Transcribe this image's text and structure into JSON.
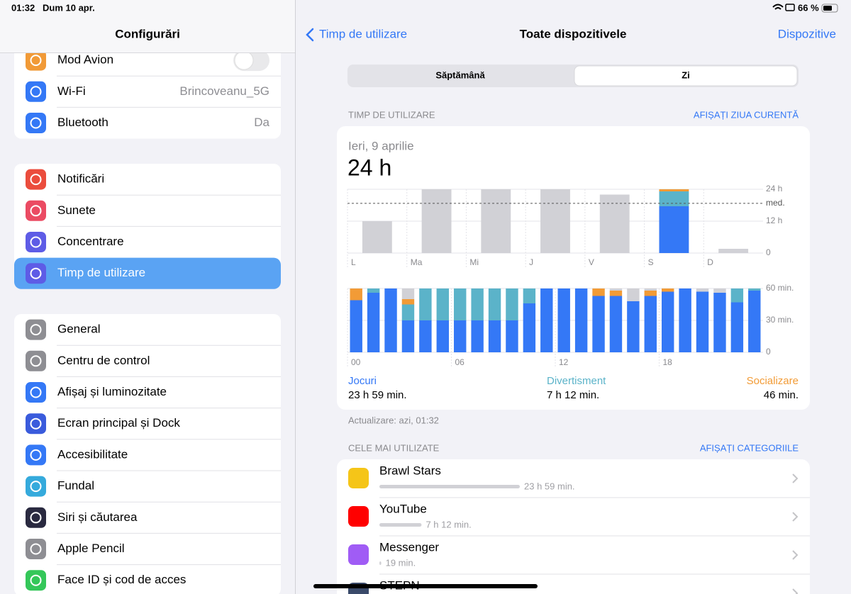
{
  "status": {
    "time": "01:32",
    "date": "Dum 10 apr.",
    "battery": "66 %"
  },
  "sidebar": {
    "title": "Configurări",
    "groups": [
      [
        {
          "label": "Mod Avion",
          "color": "#f19a37",
          "toggle": false
        },
        {
          "label": "Wi-Fi",
          "value": "Brincoveanu_5G",
          "color": "#3478f6"
        },
        {
          "label": "Bluetooth",
          "value": "Da",
          "color": "#3478f6"
        }
      ],
      [
        {
          "label": "Notificări",
          "color": "#eb4d3d"
        },
        {
          "label": "Sunete",
          "color": "#eb4b63"
        },
        {
          "label": "Concentrare",
          "color": "#5e5ce6"
        },
        {
          "label": "Timp de utilizare",
          "color": "#5e5ce6",
          "selected": true
        }
      ],
      [
        {
          "label": "General",
          "color": "#8e8e93"
        },
        {
          "label": "Centru de control",
          "color": "#8e8e93"
        },
        {
          "label": "Afișaj și luminozitate",
          "color": "#3478f6"
        },
        {
          "label": "Ecran principal și Dock",
          "color": "#3a5bdc"
        },
        {
          "label": "Accesibilitate",
          "color": "#3478f6"
        },
        {
          "label": "Fundal",
          "color": "#35aadc"
        },
        {
          "label": "Siri și căutarea",
          "color": "#2a2a40"
        },
        {
          "label": "Apple Pencil",
          "color": "#8e8e93"
        },
        {
          "label": "Face ID și cod de acces",
          "color": "#34c759"
        }
      ]
    ]
  },
  "nav": {
    "back": "Timp de utilizare",
    "title": "Toate dispozitivele",
    "action": "Dispozitive"
  },
  "segments": {
    "items": [
      "Săptămână",
      "Zi"
    ],
    "selected": 1
  },
  "usage": {
    "header": "TIMP DE UTILIZARE",
    "link": "AFIȘAȚI ZIUA CURENTĂ",
    "date": "Ieri, 9 aprilie",
    "total": "24 h",
    "daily_chart": {
      "type": "bar",
      "categories": [
        "L",
        "Ma",
        "Mi",
        "J",
        "V",
        "S",
        "D"
      ],
      "values": [
        12,
        24,
        24,
        24,
        22,
        null,
        1.6
      ],
      "color": "#d1d1d6",
      "series": [
        {
          "color": "#3478f6",
          "values": [
            null,
            null,
            null,
            null,
            null,
            17.6,
            null
          ]
        },
        {
          "color": "#5bb3c9",
          "values": [
            null,
            null,
            null,
            null,
            null,
            5.6,
            null
          ]
        },
        {
          "color": "#f29b36",
          "values": [
            null,
            null,
            null,
            null,
            null,
            0.8,
            null
          ]
        }
      ],
      "ylim": [
        0,
        24
      ],
      "yticks": [
        0,
        {
          "value": 12,
          "label": "12 h"
        },
        {
          "value": 24,
          "label": "24 h"
        }
      ],
      "average": 18.7,
      "average_label": "med."
    },
    "hourly_chart": {
      "type": "bar",
      "categories": [
        "00",
        null,
        null,
        null,
        null,
        null,
        "06",
        null,
        null,
        null,
        null,
        null,
        "12",
        null,
        null,
        null,
        null,
        null,
        "18",
        null,
        null,
        null,
        null,
        null
      ],
      "series": [
        {
          "color": "#3478f6",
          "values": [
            49,
            56,
            60,
            30,
            30,
            30,
            30,
            30,
            30,
            30,
            46,
            60,
            60,
            60,
            53,
            53,
            48,
            53,
            57,
            60,
            57,
            56,
            47,
            58
          ]
        },
        {
          "color": "#5bb3c9",
          "values": [
            0,
            4,
            0,
            15,
            30,
            30,
            30,
            30,
            30,
            30,
            14,
            0,
            0,
            0,
            0,
            0,
            0,
            0,
            0,
            0,
            0,
            0,
            13,
            2
          ]
        },
        {
          "color": "#f29b36",
          "values": [
            11,
            0,
            0,
            5,
            0,
            0,
            0,
            0,
            0,
            0,
            0,
            0,
            0,
            0,
            7,
            5,
            0,
            5,
            3,
            0,
            0,
            0,
            0,
            0
          ]
        },
        {
          "color": "#d1d1d6",
          "values": [
            0,
            0,
            0,
            10,
            0,
            0,
            0,
            0,
            0,
            0,
            0,
            0,
            0,
            0,
            0,
            2,
            12,
            2,
            0,
            0,
            3,
            4,
            0,
            0
          ]
        }
      ],
      "ylim": [
        0,
        60
      ],
      "yticks": [
        0,
        {
          "value": 30,
          "label": "30 min."
        },
        {
          "value": 60,
          "label": "60 min."
        }
      ]
    },
    "legend": [
      {
        "name": "Jocuri",
        "color": "#3478f6",
        "total": "23 h 59 min."
      },
      {
        "name": "Divertisment",
        "color": "#5bb3c9",
        "total": "7 h 12 min."
      },
      {
        "name": "Socializare",
        "color": "#f29b36",
        "total": "46 min."
      }
    ],
    "updated": "Actualizare: azi, 01:32"
  },
  "most_used": {
    "header": "CELE MAI UTILIZATE",
    "link": "AFIȘAȚI CATEGORIILE",
    "apps": [
      {
        "name": "Brawl Stars",
        "minutes": 1439,
        "minutes_label": "23 h 59 min.",
        "color": "#f5c518"
      },
      {
        "name": "YouTube",
        "minutes": 432,
        "minutes_label": "7 h 12 min.",
        "color": "#ff0000"
      },
      {
        "name": "Messenger",
        "minutes": 19,
        "minutes_label": "19 min.",
        "color": "#a05cf5"
      },
      {
        "name": "STEPN",
        "color": "#3a4a6a"
      }
    ]
  }
}
